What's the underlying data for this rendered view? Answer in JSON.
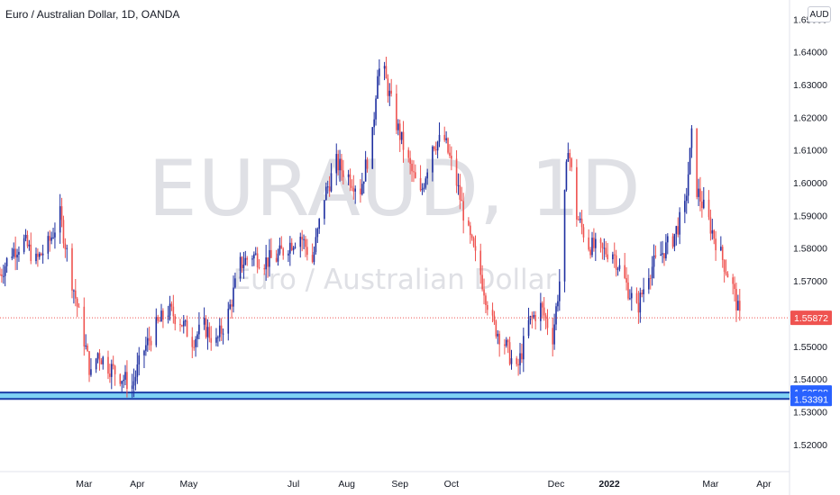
{
  "header": {
    "symbol_title": "Euro / Australian Dollar, 1D, OANDA",
    "currency": "AUD"
  },
  "watermark": {
    "ticker": "EURAUD, 1D",
    "name": "Euro / Australian Dollar"
  },
  "colors": {
    "up": "#1e2fa0",
    "down": "#ef5350",
    "zone_fill": "#7fd3f5",
    "zone_line": "#1c3fa8",
    "last_price": "#ef5350",
    "price_tag_blue": "#2962ff"
  },
  "chart_data": {
    "type": "candlestick",
    "y_axis_labels": [
      "1.65000",
      "1.64000",
      "1.63000",
      "1.62000",
      "1.61000",
      "1.60000",
      "1.59000",
      "1.58000",
      "1.57000",
      "1.56000",
      "1.55000",
      "1.54000",
      "1.53000",
      "1.52000"
    ],
    "ylim": [
      1.515,
      1.652
    ],
    "x_axis_labels": [
      {
        "label": "Mar",
        "date": "2021-03-01",
        "major": false
      },
      {
        "label": "Apr",
        "date": "2021-04-01",
        "major": false
      },
      {
        "label": "May",
        "date": "2021-05-01",
        "major": false
      },
      {
        "label": "Jul",
        "date": "2021-07-01",
        "major": false
      },
      {
        "label": "Aug",
        "date": "2021-08-01",
        "major": false
      },
      {
        "label": "Sep",
        "date": "2021-09-01",
        "major": false
      },
      {
        "label": "Oct",
        "date": "2021-10-01",
        "major": false
      },
      {
        "label": "Dec",
        "date": "2021-12-01",
        "major": false
      },
      {
        "label": "2022",
        "date": "2022-01-01",
        "major": true
      },
      {
        "label": "Mar",
        "date": "2022-03-01",
        "major": false
      },
      {
        "label": "Apr",
        "date": "2022-04-01",
        "major": false
      }
    ],
    "xlim": [
      "2021-01-11",
      "2022-04-16"
    ],
    "price_path": [
      [
        "2021-01-11",
        1.572
      ],
      [
        "2021-01-18",
        1.579
      ],
      [
        "2021-01-25",
        1.582
      ],
      [
        "2021-02-01",
        1.576
      ],
      [
        "2021-02-08",
        1.581
      ],
      [
        "2021-02-15",
        1.59
      ],
      [
        "2021-02-22",
        1.57
      ],
      [
        "2021-03-01",
        1.552
      ],
      [
        "2021-03-05",
        1.541
      ],
      [
        "2021-03-09",
        1.548
      ],
      [
        "2021-03-15",
        1.544
      ],
      [
        "2021-03-22",
        1.541
      ],
      [
        "2021-03-29",
        1.538
      ],
      [
        "2021-04-05",
        1.549
      ],
      [
        "2021-04-12",
        1.556
      ],
      [
        "2021-04-19",
        1.561
      ],
      [
        "2021-04-26",
        1.558
      ],
      [
        "2021-05-03",
        1.552
      ],
      [
        "2021-05-10",
        1.556
      ],
      [
        "2021-05-17",
        1.551
      ],
      [
        "2021-05-24",
        1.56
      ],
      [
        "2021-05-31",
        1.575
      ],
      [
        "2021-06-07",
        1.578
      ],
      [
        "2021-06-14",
        1.576
      ],
      [
        "2021-06-21",
        1.577
      ],
      [
        "2021-06-28",
        1.581
      ],
      [
        "2021-07-05",
        1.584
      ],
      [
        "2021-07-12",
        1.576
      ],
      [
        "2021-07-19",
        1.596
      ],
      [
        "2021-07-26",
        1.606
      ],
      [
        "2021-08-02",
        1.602
      ],
      [
        "2021-08-09",
        1.598
      ],
      [
        "2021-08-16",
        1.614
      ],
      [
        "2021-08-19",
        1.635
      ],
      [
        "2021-08-23",
        1.633
      ],
      [
        "2021-08-30",
        1.618
      ],
      [
        "2021-09-06",
        1.606
      ],
      [
        "2021-09-13",
        1.596
      ],
      [
        "2021-09-20",
        1.612
      ],
      [
        "2021-09-27",
        1.613
      ],
      [
        "2021-10-04",
        1.6
      ],
      [
        "2021-10-11",
        1.584
      ],
      [
        "2021-10-18",
        1.572
      ],
      [
        "2021-10-25",
        1.557
      ],
      [
        "2021-11-01",
        1.551
      ],
      [
        "2021-11-08",
        1.542
      ],
      [
        "2021-11-15",
        1.557
      ],
      [
        "2021-11-22",
        1.562
      ],
      [
        "2021-11-29",
        1.553
      ],
      [
        "2021-12-03",
        1.57
      ],
      [
        "2021-12-08",
        1.612
      ],
      [
        "2021-12-13",
        1.59
      ],
      [
        "2021-12-20",
        1.581
      ],
      [
        "2021-12-27",
        1.579
      ],
      [
        "2022-01-03",
        1.579
      ],
      [
        "2022-01-10",
        1.57
      ],
      [
        "2022-01-17",
        1.561
      ],
      [
        "2022-01-24",
        1.573
      ],
      [
        "2022-01-31",
        1.578
      ],
      [
        "2022-02-07",
        1.583
      ],
      [
        "2022-02-14",
        1.592
      ],
      [
        "2022-02-18",
        1.614
      ],
      [
        "2022-02-21",
        1.598
      ],
      [
        "2022-02-28",
        1.588
      ],
      [
        "2022-03-07",
        1.578
      ],
      [
        "2022-03-14",
        1.568
      ],
      [
        "2022-03-18",
        1.5587
      ]
    ],
    "last_price": {
      "label": "1.55872",
      "value": 1.55872
    },
    "support_zone": {
      "top_label": "1.53588",
      "top": 1.53588,
      "bottom_label": "1.53391",
      "bottom": 1.53391
    }
  }
}
